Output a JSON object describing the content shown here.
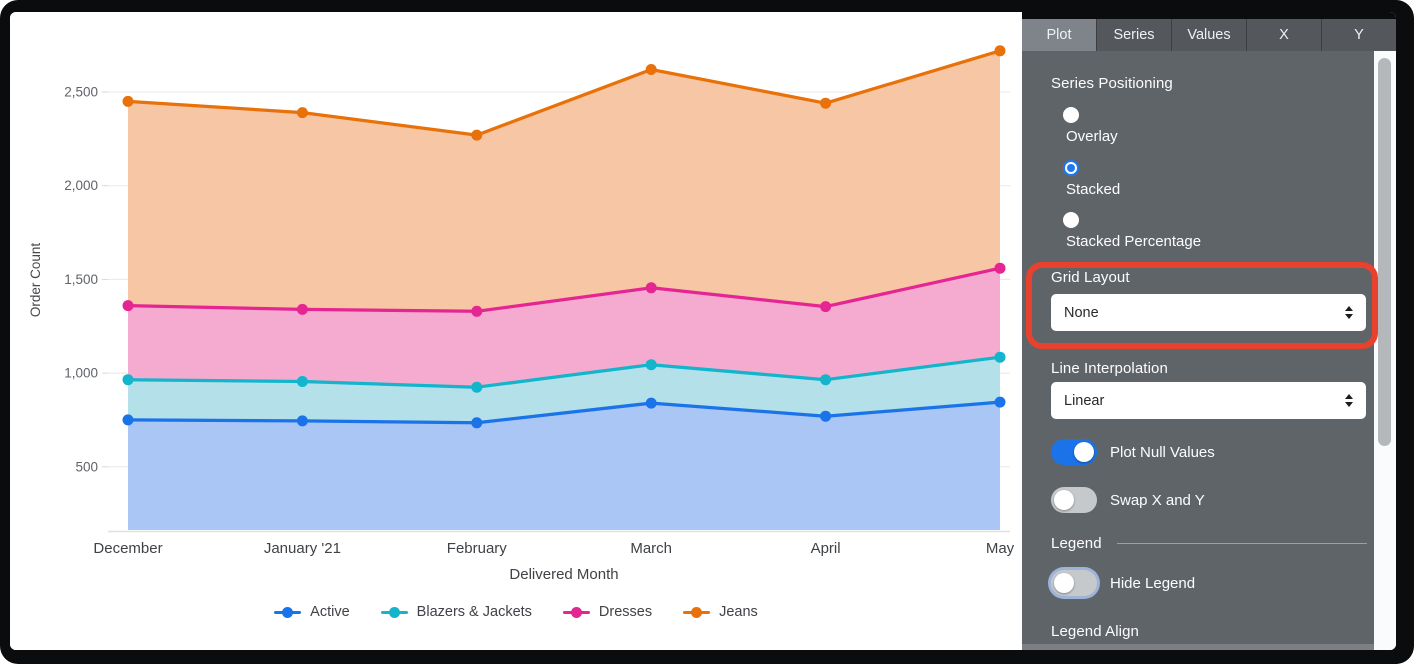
{
  "chart_data": {
    "type": "area",
    "stacking": "stacked",
    "title": "",
    "xlabel": "Delivered Month",
    "ylabel": "Order Count",
    "x": [
      "December",
      "January '21",
      "February",
      "March",
      "April",
      "May"
    ],
    "yticks": [
      500,
      1000,
      1500,
      2000,
      2500
    ],
    "ytick_labels": [
      "500",
      "1,000",
      "1,500",
      "2,000",
      "2,500"
    ],
    "grid": "horizontal",
    "legend_position": "bottom",
    "series": [
      {
        "name": "Active",
        "color": "#1a73e8",
        "fill": "#a9c6f5",
        "values": [
          750,
          745,
          735,
          840,
          770,
          845
        ]
      },
      {
        "name": "Blazers & Jackets",
        "color": "#12b5cb",
        "fill": "#b3e0e9",
        "values": [
          215,
          210,
          190,
          205,
          195,
          240
        ]
      },
      {
        "name": "Dresses",
        "color": "#e52592",
        "fill": "#f5abd0",
        "values": [
          395,
          385,
          405,
          410,
          390,
          475
        ]
      },
      {
        "name": "Jeans",
        "color": "#e8710a",
        "fill": "#f7c6a4",
        "values": [
          1090,
          1050,
          940,
          1165,
          1085,
          1160
        ]
      }
    ],
    "stacked_totals": [
      2450,
      2390,
      2270,
      2620,
      2440,
      2720
    ]
  },
  "panel": {
    "tabs": [
      {
        "label": "Plot",
        "active": true
      },
      {
        "label": "Series",
        "active": false
      },
      {
        "label": "Values",
        "active": false
      },
      {
        "label": "X",
        "active": false
      },
      {
        "label": "Y",
        "active": false
      }
    ],
    "series_positioning": {
      "label": "Series Positioning",
      "options": [
        {
          "label": "Overlay",
          "selected": false
        },
        {
          "label": "Stacked",
          "selected": true
        },
        {
          "label": "Stacked Percentage",
          "selected": false
        }
      ]
    },
    "grid_layout": {
      "label": "Grid Layout",
      "value": "None",
      "highlighted": true,
      "highlight_color": "#e8422e"
    },
    "line_interpolation": {
      "label": "Line Interpolation",
      "value": "Linear"
    },
    "toggles": [
      {
        "label": "Plot Null Values",
        "on": true
      },
      {
        "label": "Swap X and Y",
        "on": false
      }
    ],
    "legend_section": {
      "header": "Legend",
      "hide_legend": {
        "label": "Hide Legend",
        "on": false,
        "focused": true
      },
      "legend_align_label": "Legend Align"
    },
    "accent_color": "#1a73e8"
  }
}
